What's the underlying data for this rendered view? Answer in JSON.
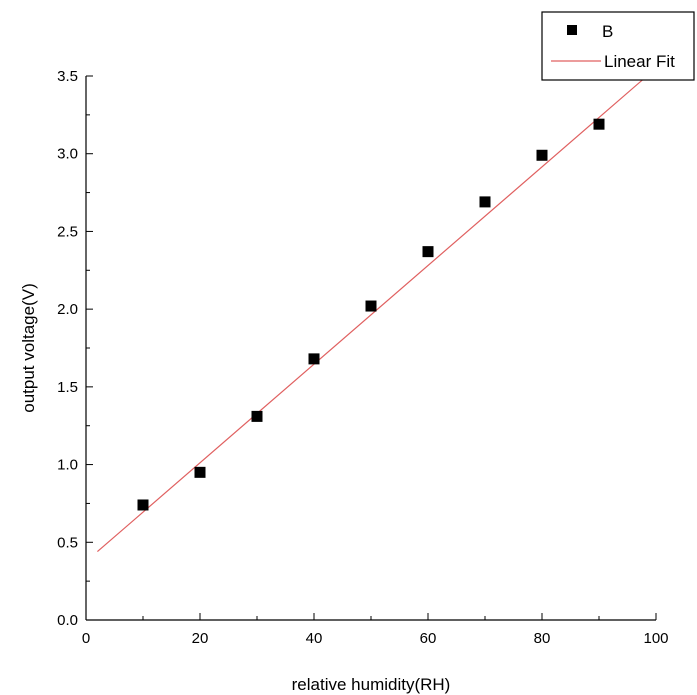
{
  "chart_data": {
    "type": "scatter",
    "title": "",
    "xlabel": "relative humidity(RH)",
    "ylabel": "output voltage(V)",
    "xlim": [
      0,
      100
    ],
    "ylim": [
      0,
      3.5
    ],
    "x_ticks": [
      0,
      20,
      40,
      60,
      80,
      100
    ],
    "y_ticks": [
      0.0,
      0.5,
      1.0,
      1.5,
      2.0,
      2.5,
      3.0,
      3.5
    ],
    "x_tick_labels": [
      "0",
      "20",
      "40",
      "60",
      "80",
      "100"
    ],
    "y_tick_labels": [
      "0.0",
      "0.5",
      "1.0",
      "1.5",
      "2.0",
      "2.5",
      "3.0",
      "3.5"
    ],
    "grid": false,
    "legend": {
      "placement": "top-right",
      "entries": [
        "B",
        "Linear Fit"
      ]
    },
    "series": [
      {
        "name": "B",
        "marker": "square",
        "color": "#000000",
        "x": [
          10,
          20,
          30,
          40,
          50,
          60,
          70,
          80,
          90
        ],
        "y": [
          0.74,
          0.95,
          1.31,
          1.68,
          2.02,
          2.37,
          2.69,
          2.99,
          3.19
        ]
      },
      {
        "name": "Linear Fit",
        "style": "line",
        "color": "#e06060",
        "x": [
          2,
          100
        ],
        "y": [
          0.44,
          3.55
        ]
      }
    ]
  }
}
